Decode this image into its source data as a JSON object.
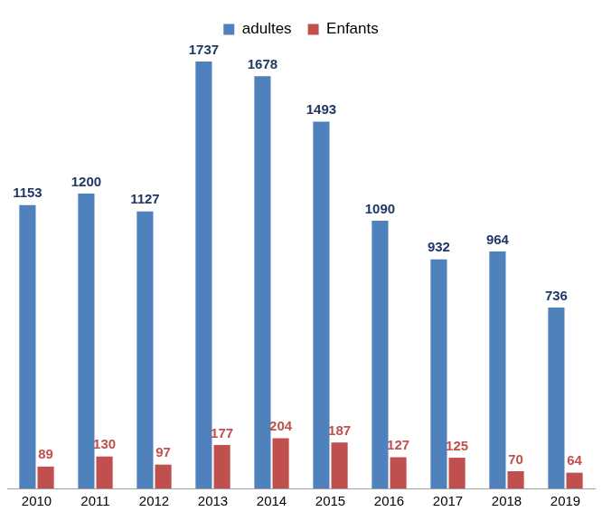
{
  "chart_data": {
    "type": "bar",
    "categories": [
      "2010",
      "2011",
      "2012",
      "2013",
      "2014",
      "2015",
      "2016",
      "2017",
      "2018",
      "2019"
    ],
    "series": [
      {
        "name": "adultes",
        "color": "#4f81bd",
        "values": [
          1153,
          1200,
          1127,
          1737,
          1678,
          1493,
          1090,
          932,
          964,
          736
        ]
      },
      {
        "name": "Enfants",
        "color": "#c0504d",
        "values": [
          89,
          130,
          97,
          177,
          204,
          187,
          127,
          125,
          70,
          64
        ]
      }
    ],
    "legend": "top",
    "data_labels": true,
    "grid": false,
    "tick_labels": "x"
  }
}
